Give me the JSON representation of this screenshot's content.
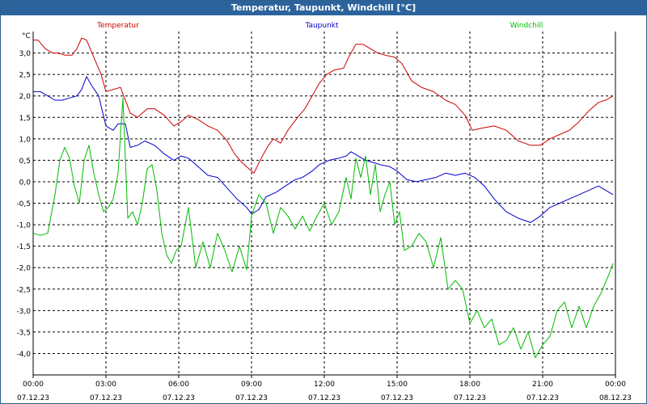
{
  "window": {
    "title": "Temperatur, Taupunkt, Windchill [°C]"
  },
  "chart_data": {
    "type": "line",
    "title": "Temperatur, Taupunkt, Windchill [°C]",
    "yunit": "°C",
    "ylim": [
      -4.5,
      3.5
    ],
    "yticks": [
      3.0,
      2.5,
      2.0,
      1.5,
      1.0,
      0.5,
      0.0,
      -0.5,
      -1.0,
      -1.5,
      -2.0,
      -2.5,
      -3.0,
      -3.5,
      -4.0
    ],
    "ytick_labels": [
      "3,0",
      "2,5",
      "2,0",
      "1,5",
      "1,0",
      "0,5",
      "0,0",
      "-0,5",
      "-1,0",
      "-1,5",
      "-2,0",
      "-2,5",
      "-3,0",
      "-3,5",
      "-4,0"
    ],
    "xlim": [
      0,
      24
    ],
    "xticks": [
      {
        "h": 0,
        "time": "00:00",
        "date": "07.12.23"
      },
      {
        "h": 3,
        "time": "03:00",
        "date": "07.12.23"
      },
      {
        "h": 6,
        "time": "06:00",
        "date": "07.12.23"
      },
      {
        "h": 9,
        "time": "09:00",
        "date": "07.12.23"
      },
      {
        "h": 12,
        "time": "12:00",
        "date": "07.12.23"
      },
      {
        "h": 15,
        "time": "15:00",
        "date": "07.12.23"
      },
      {
        "h": 18,
        "time": "18:00",
        "date": "07.12.23"
      },
      {
        "h": 21,
        "time": "21:00",
        "date": "07.12.23"
      },
      {
        "h": 24,
        "time": "00:00",
        "date": "08.12.23"
      }
    ],
    "grid": true,
    "legend": "top",
    "series": [
      {
        "name": "Temperatur",
        "color": "#cc0000",
        "x": [
          0,
          0.2,
          0.5,
          0.8,
          1.0,
          1.3,
          1.6,
          1.8,
          2.0,
          2.2,
          2.5,
          2.8,
          3.0,
          3.3,
          3.6,
          4.0,
          4.3,
          4.7,
          5.0,
          5.4,
          5.8,
          6.1,
          6.4,
          6.8,
          7.2,
          7.6,
          8.0,
          8.3,
          8.6,
          8.9,
          9.1,
          9.4,
          9.7,
          9.9,
          10.2,
          10.5,
          10.9,
          11.2,
          11.5,
          11.8,
          12.1,
          12.4,
          12.8,
          13.0,
          13.3,
          13.6,
          13.9,
          14.2,
          14.5,
          14.9,
          15.2,
          15.6,
          16.0,
          16.5,
          17.0,
          17.4,
          17.8,
          18.1,
          18.5,
          19.0,
          19.5,
          20.0,
          20.5,
          20.9,
          21.3,
          21.7,
          22.1,
          22.5,
          22.9,
          23.3,
          23.6,
          23.9
        ],
        "values": [
          3.3,
          3.3,
          3.1,
          3.0,
          3.0,
          2.95,
          2.95,
          3.1,
          3.35,
          3.3,
          2.9,
          2.5,
          2.1,
          2.15,
          2.2,
          1.6,
          1.5,
          1.7,
          1.7,
          1.55,
          1.3,
          1.4,
          1.55,
          1.45,
          1.3,
          1.2,
          0.95,
          0.65,
          0.45,
          0.3,
          0.2,
          0.55,
          0.85,
          1.0,
          0.9,
          1.2,
          1.5,
          1.7,
          2.0,
          2.3,
          2.5,
          2.6,
          2.65,
          2.9,
          3.2,
          3.2,
          3.1,
          3.0,
          2.95,
          2.9,
          2.75,
          2.35,
          2.2,
          2.1,
          1.9,
          1.8,
          1.55,
          1.2,
          1.25,
          1.3,
          1.2,
          0.95,
          0.85,
          0.85,
          1.0,
          1.1,
          1.2,
          1.4,
          1.65,
          1.85,
          1.9,
          2.0
        ]
      },
      {
        "name": "Taupunkt",
        "color": "#0000cc",
        "x": [
          0,
          0.3,
          0.6,
          0.9,
          1.2,
          1.5,
          1.8,
          2.0,
          2.2,
          2.4,
          2.7,
          3.0,
          3.3,
          3.5,
          3.8,
          4.0,
          4.3,
          4.6,
          5.0,
          5.4,
          5.8,
          6.1,
          6.4,
          6.8,
          7.2,
          7.6,
          8.0,
          8.4,
          8.8,
          9.0,
          9.3,
          9.6,
          10.0,
          10.4,
          10.8,
          11.1,
          11.5,
          11.8,
          12.2,
          12.6,
          12.9,
          13.1,
          13.4,
          13.7,
          14.0,
          14.3,
          14.7,
          15.0,
          15.4,
          15.8,
          16.2,
          16.6,
          17.0,
          17.4,
          17.8,
          18.2,
          18.6,
          19.0,
          19.5,
          20.0,
          20.5,
          20.9,
          21.3,
          21.7,
          22.1,
          22.5,
          22.9,
          23.3,
          23.6,
          23.9
        ],
        "values": [
          2.1,
          2.1,
          2.0,
          1.9,
          1.9,
          1.95,
          2.0,
          2.15,
          2.45,
          2.25,
          2.0,
          1.3,
          1.2,
          1.35,
          1.35,
          0.8,
          0.85,
          0.95,
          0.85,
          0.65,
          0.5,
          0.6,
          0.55,
          0.35,
          0.15,
          0.1,
          -0.15,
          -0.4,
          -0.6,
          -0.75,
          -0.65,
          -0.35,
          -0.25,
          -0.1,
          0.05,
          0.1,
          0.25,
          0.4,
          0.5,
          0.55,
          0.6,
          0.7,
          0.6,
          0.5,
          0.45,
          0.4,
          0.35,
          0.25,
          0.05,
          0.0,
          0.05,
          0.1,
          0.2,
          0.15,
          0.2,
          0.1,
          -0.1,
          -0.4,
          -0.7,
          -0.85,
          -0.95,
          -0.8,
          -0.6,
          -0.5,
          -0.4,
          -0.3,
          -0.2,
          -0.1,
          -0.2,
          -0.3
        ]
      },
      {
        "name": "Windchill",
        "color": "#00bb00",
        "x": [
          0,
          0.3,
          0.6,
          0.9,
          1.1,
          1.3,
          1.5,
          1.7,
          1.9,
          2.1,
          2.3,
          2.5,
          2.7,
          2.9,
          3.1,
          3.3,
          3.5,
          3.7,
          3.9,
          4.1,
          4.3,
          4.5,
          4.7,
          4.9,
          5.1,
          5.3,
          5.5,
          5.7,
          5.9,
          6.1,
          6.4,
          6.7,
          7.0,
          7.3,
          7.6,
          7.9,
          8.2,
          8.5,
          8.8,
          9.0,
          9.3,
          9.6,
          9.9,
          10.2,
          10.5,
          10.8,
          11.1,
          11.4,
          11.7,
          12.0,
          12.3,
          12.6,
          12.9,
          13.1,
          13.3,
          13.5,
          13.7,
          13.9,
          14.1,
          14.3,
          14.5,
          14.7,
          14.9,
          15.1,
          15.3,
          15.6,
          15.9,
          16.2,
          16.5,
          16.8,
          17.1,
          17.4,
          17.7,
          18.0,
          18.3,
          18.6,
          18.9,
          19.2,
          19.5,
          19.8,
          20.1,
          20.4,
          20.7,
          21.0,
          21.3,
          21.6,
          21.9,
          22.2,
          22.5,
          22.8,
          23.1,
          23.4,
          23.7,
          23.9
        ],
        "values": [
          -1.2,
          -1.25,
          -1.2,
          -0.3,
          0.5,
          0.8,
          0.55,
          -0.1,
          -0.5,
          0.5,
          0.85,
          0.2,
          -0.3,
          -0.7,
          -0.6,
          -0.4,
          0.2,
          1.95,
          -0.85,
          -0.7,
          -1.0,
          -0.5,
          0.3,
          0.4,
          -0.2,
          -1.2,
          -1.7,
          -1.9,
          -1.6,
          -1.5,
          -0.6,
          -2.0,
          -1.4,
          -2.0,
          -1.2,
          -1.6,
          -2.1,
          -1.5,
          -2.05,
          -0.8,
          -0.3,
          -0.5,
          -1.2,
          -0.6,
          -0.8,
          -1.1,
          -0.8,
          -1.15,
          -0.8,
          -0.5,
          -1.0,
          -0.7,
          0.1,
          -0.4,
          0.55,
          0.1,
          0.6,
          -0.3,
          0.4,
          -0.7,
          -0.3,
          0.0,
          -1.0,
          -0.7,
          -1.6,
          -1.5,
          -1.2,
          -1.4,
          -2.0,
          -1.3,
          -2.5,
          -2.3,
          -2.5,
          -3.3,
          -3.0,
          -3.4,
          -3.2,
          -3.8,
          -3.7,
          -3.4,
          -3.9,
          -3.5,
          -4.1,
          -3.8,
          -3.6,
          -3.0,
          -2.8,
          -3.4,
          -2.9,
          -3.4,
          -2.9,
          -2.6,
          -2.2,
          -1.9
        ]
      }
    ]
  }
}
